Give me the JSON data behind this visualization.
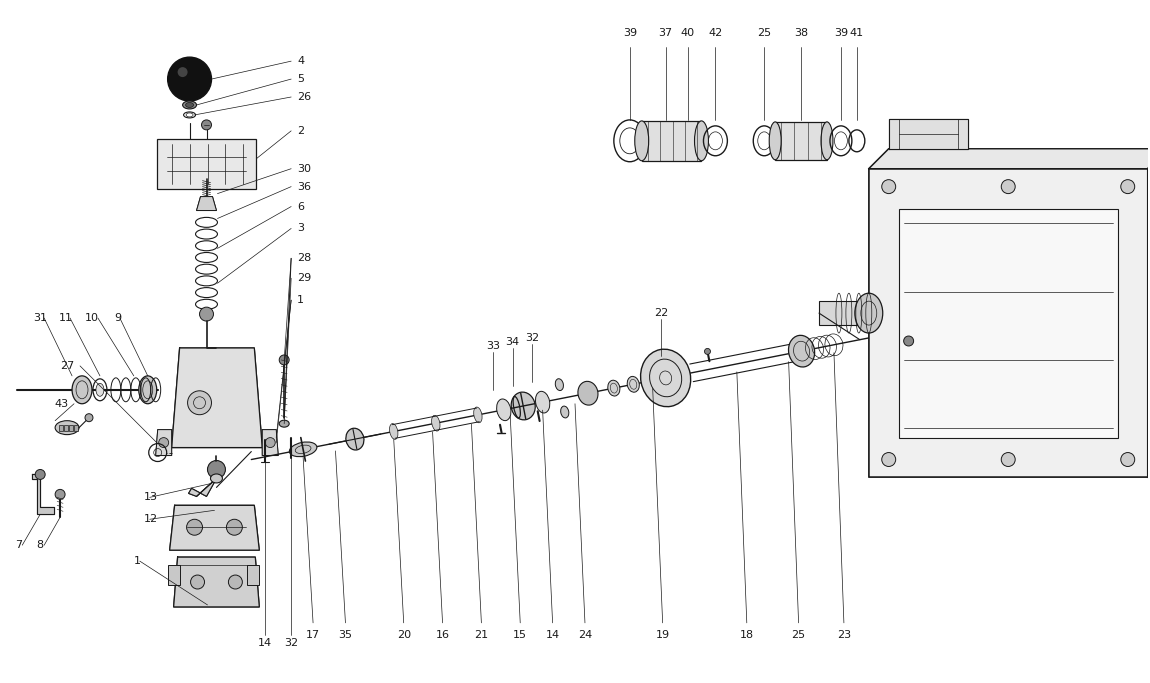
{
  "bg_color": "#ffffff",
  "line_color": "#1a1a1a",
  "fig_width": 11.5,
  "fig_height": 6.83,
  "dpi": 100
}
